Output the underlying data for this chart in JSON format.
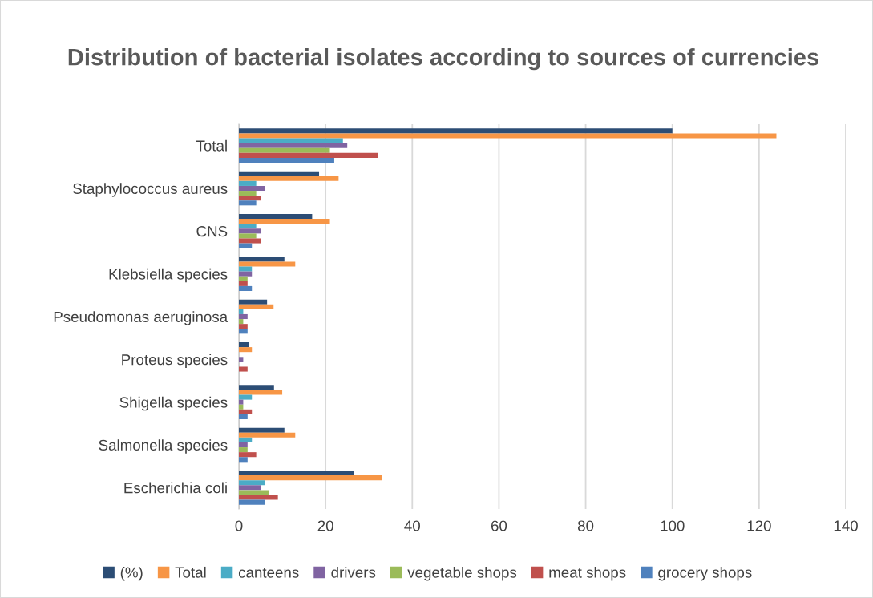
{
  "chart_data": {
    "type": "bar",
    "orientation": "horizontal",
    "title": "Distribution of bacterial isolates according to sources of currencies",
    "categories": [
      "Total",
      "Staphylococcus aureus",
      "CNS",
      "Klebsiella species",
      "Pseudomonas aeruginosa",
      "Proteus species",
      "Shigella species",
      "Salmonella species",
      "Escherichia coli"
    ],
    "series": [
      {
        "name": "(%)",
        "color": "#2c4d75",
        "values": [
          100,
          18.5,
          16.9,
          10.5,
          6.5,
          2.4,
          8.1,
          10.5,
          26.6
        ]
      },
      {
        "name": "Total",
        "color": "#f79646",
        "values": [
          124,
          23,
          21,
          13,
          8,
          3,
          10,
          13,
          33
        ]
      },
      {
        "name": "canteens",
        "color": "#4bacc6",
        "values": [
          24,
          4,
          4,
          3,
          1,
          0,
          3,
          3,
          6
        ]
      },
      {
        "name": "drivers",
        "color": "#8064a2",
        "values": [
          25,
          6,
          5,
          3,
          2,
          1,
          1,
          2,
          5
        ]
      },
      {
        "name": "vegetable shops",
        "color": "#9bbb59",
        "values": [
          21,
          4,
          4,
          2,
          1,
          0,
          1,
          2,
          7
        ]
      },
      {
        "name": "meat shops",
        "color": "#c0504d",
        "values": [
          32,
          5,
          5,
          2,
          2,
          2,
          3,
          4,
          9
        ]
      },
      {
        "name": "grocery shops",
        "color": "#4f81bd",
        "values": [
          22,
          4,
          3,
          3,
          2,
          0,
          2,
          2,
          6
        ]
      }
    ],
    "xlim": [
      0,
      140
    ],
    "xticks": [
      0,
      20,
      40,
      60,
      80,
      100,
      120,
      140
    ],
    "grid": "x",
    "legend": "bottom"
  }
}
